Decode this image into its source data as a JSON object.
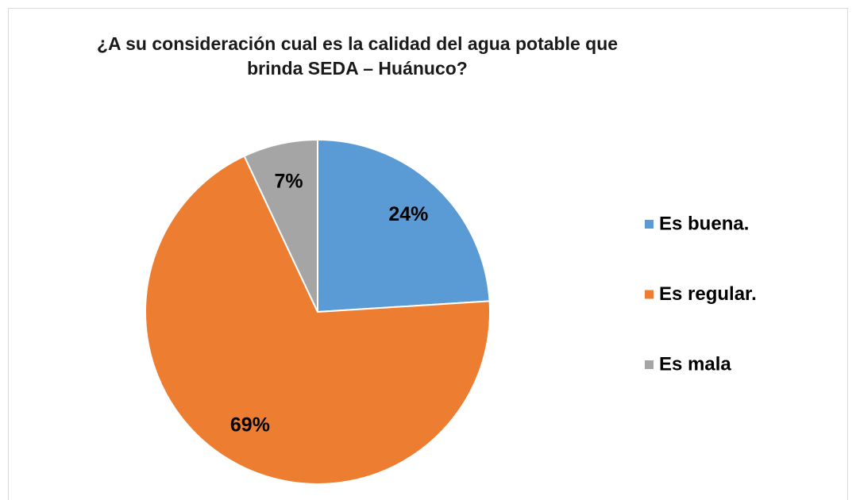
{
  "chart_data": {
    "type": "pie",
    "title": "¿A su consideración cual es la calidad del agua potable que brinda SEDA – Huánuco?",
    "categories": [
      "Es buena.",
      "Es regular.",
      "Es mala"
    ],
    "values": [
      24,
      69,
      7
    ],
    "value_labels": [
      "24%",
      "69%",
      "7%"
    ],
    "colors": [
      "#5b9bd5",
      "#ed7d31",
      "#a5a5a5"
    ],
    "legend": "right"
  }
}
